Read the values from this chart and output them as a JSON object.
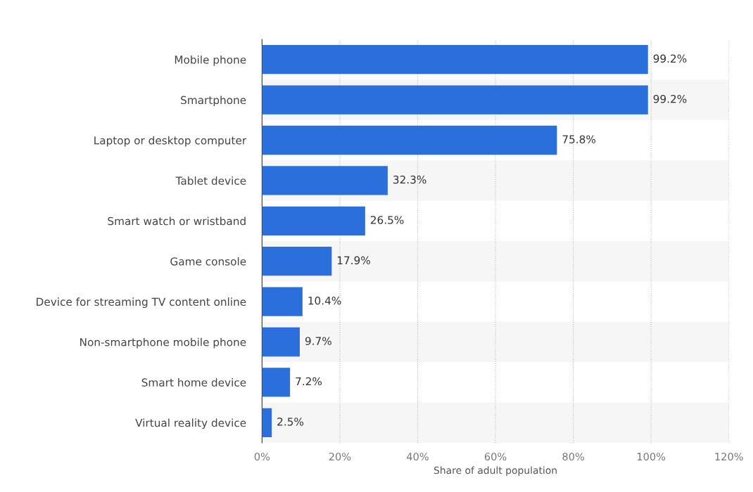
{
  "chart_data": {
    "type": "bar",
    "orientation": "horizontal",
    "categories": [
      "Mobile phone",
      "Smartphone",
      "Laptop or desktop computer",
      "Tablet device",
      "Smart watch or wristband",
      "Game console",
      "Device for streaming TV content online",
      "Non-smartphone mobile phone",
      "Smart home device",
      "Virtual reality device"
    ],
    "values": [
      99.2,
      99.2,
      75.8,
      32.3,
      26.5,
      17.9,
      10.4,
      9.7,
      7.2,
      2.5
    ],
    "value_labels": [
      "99.2%",
      "99.2%",
      "75.8%",
      "32.3%",
      "26.5%",
      "17.9%",
      "10.4%",
      "9.7%",
      "7.2%",
      "2.5%"
    ],
    "color": "#2a6fdb",
    "xlabel": "Share of adult population",
    "xlim": [
      0,
      120
    ],
    "xticks": [
      {
        "value": 0,
        "label": "0%"
      },
      {
        "value": 20,
        "label": "20%"
      },
      {
        "value": 40,
        "label": "40%"
      },
      {
        "value": 60,
        "label": "60%"
      },
      {
        "value": 80,
        "label": "80%"
      },
      {
        "value": 100,
        "label": "100%"
      },
      {
        "value": 120,
        "label": "120%"
      }
    ],
    "grid": "x"
  }
}
